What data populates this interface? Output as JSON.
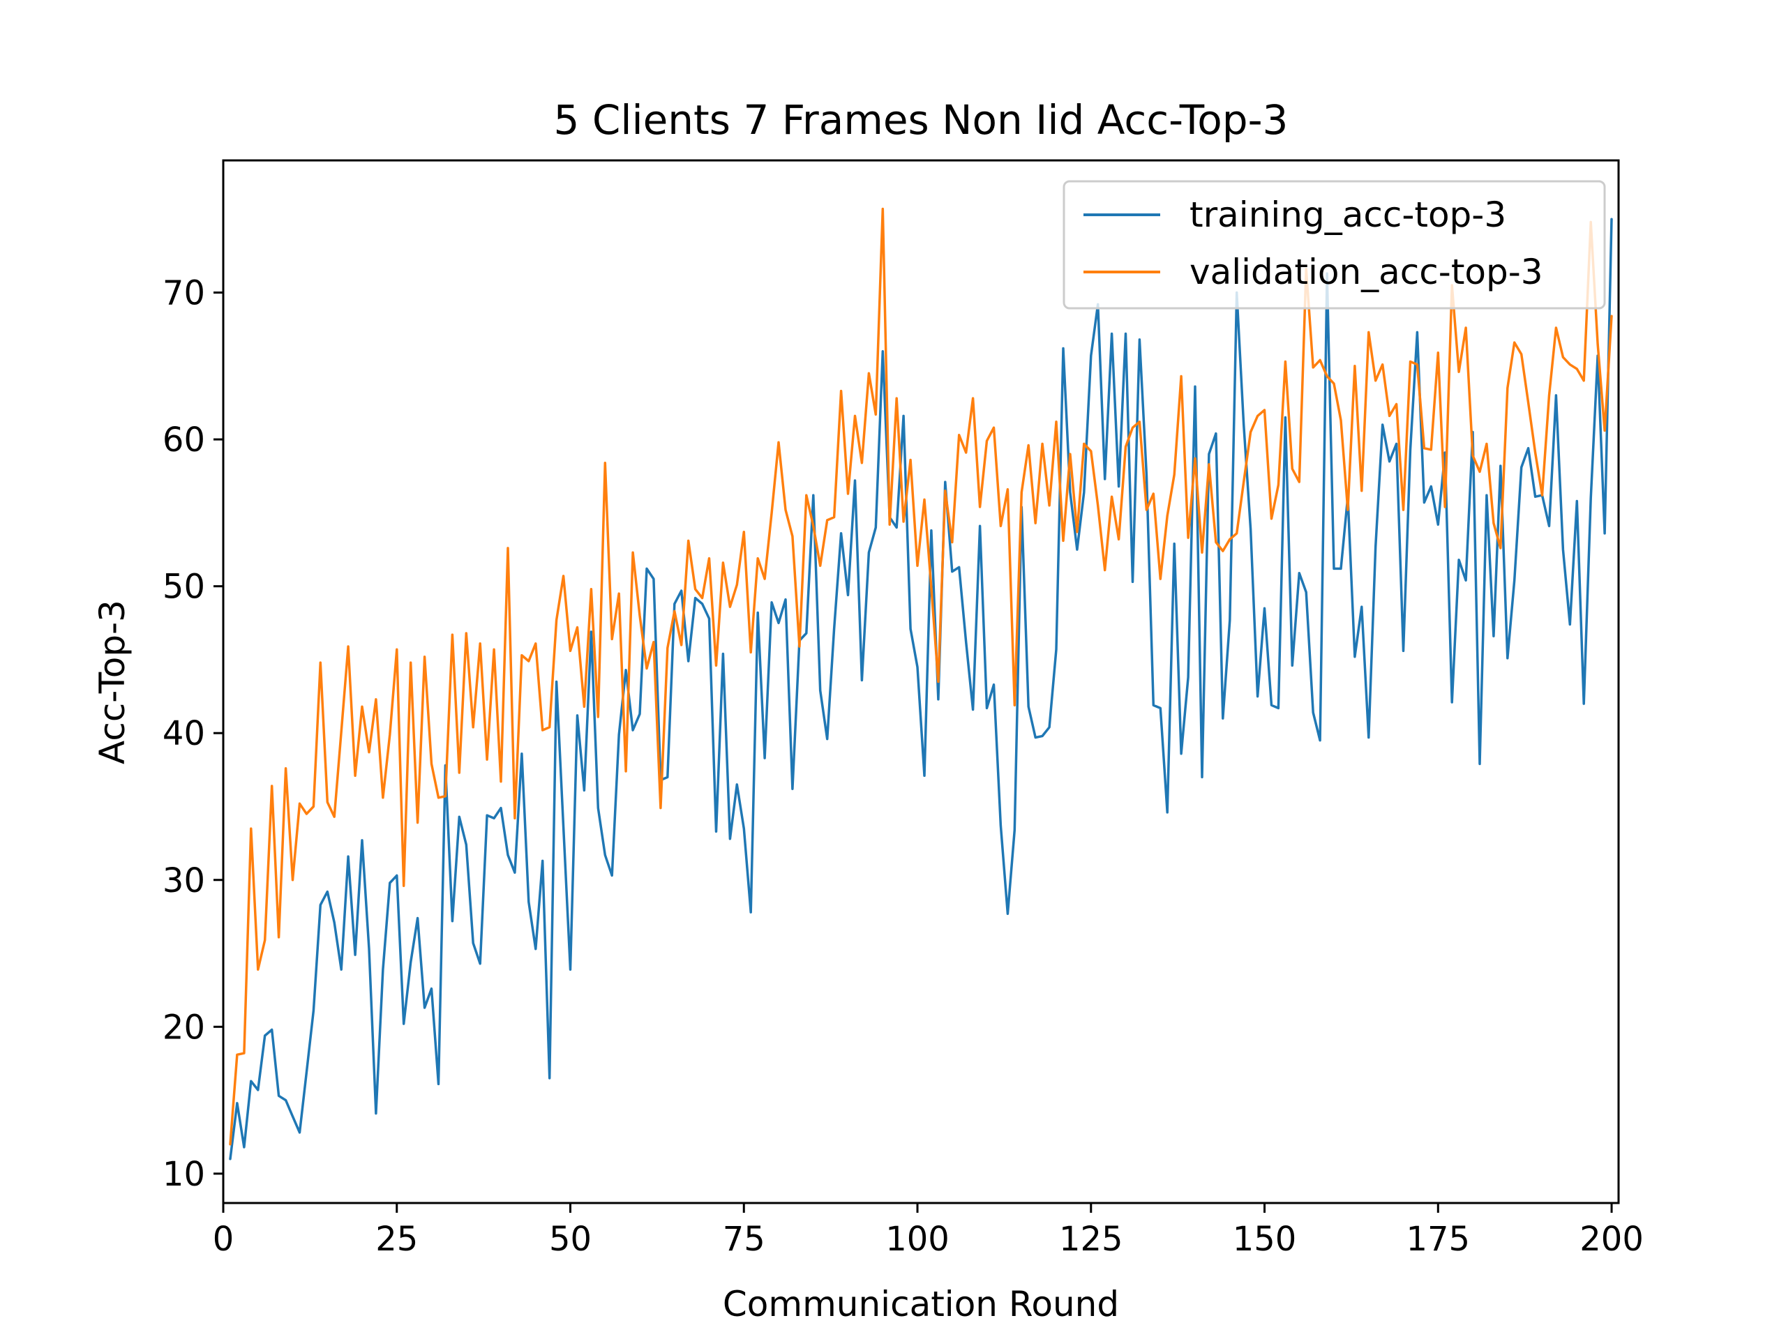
{
  "chart_data": {
    "type": "line",
    "title": "5 Clients 7 Frames Non Iid Acc-Top-3",
    "xlabel": "Communication Round",
    "ylabel": "Acc-Top-3",
    "xlim": [
      0,
      201
    ],
    "ylim": [
      8,
      79
    ],
    "xticks": [
      0,
      25,
      50,
      75,
      100,
      125,
      150,
      175,
      200
    ],
    "yticks": [
      10,
      20,
      30,
      40,
      50,
      60,
      70
    ],
    "grid": false,
    "legend_position": "top-right",
    "x": [
      1,
      2,
      3,
      4,
      5,
      6,
      7,
      8,
      9,
      10,
      11,
      12,
      13,
      14,
      15,
      16,
      17,
      18,
      19,
      20,
      21,
      22,
      23,
      24,
      25,
      26,
      27,
      28,
      29,
      30,
      31,
      32,
      33,
      34,
      35,
      36,
      37,
      38,
      39,
      40,
      41,
      42,
      43,
      44,
      45,
      46,
      47,
      48,
      49,
      50,
      51,
      52,
      53,
      54,
      55,
      56,
      57,
      58,
      59,
      60,
      61,
      62,
      63,
      64,
      65,
      66,
      67,
      68,
      69,
      70,
      71,
      72,
      73,
      74,
      75,
      76,
      77,
      78,
      79,
      80,
      81,
      82,
      83,
      84,
      85,
      86,
      87,
      88,
      89,
      90,
      91,
      92,
      93,
      94,
      95,
      96,
      97,
      98,
      99,
      100,
      101,
      102,
      103,
      104,
      105,
      106,
      107,
      108,
      109,
      110,
      111,
      112,
      113,
      114,
      115,
      116,
      117,
      118,
      119,
      120,
      121,
      122,
      123,
      124,
      125,
      126,
      127,
      128,
      129,
      130,
      131,
      132,
      133,
      134,
      135,
      136,
      137,
      138,
      139,
      140,
      141,
      142,
      143,
      144,
      145,
      146,
      147,
      148,
      149,
      150,
      151,
      152,
      153,
      154,
      155,
      156,
      157,
      158,
      159,
      160,
      161,
      162,
      163,
      164,
      165,
      166,
      167,
      168,
      169,
      170,
      171,
      172,
      173,
      174,
      175,
      176,
      177,
      178,
      179,
      180,
      181,
      182,
      183,
      184,
      185,
      186,
      187,
      188,
      189,
      190,
      191,
      192,
      193,
      194,
      195,
      196,
      197,
      198,
      199,
      200
    ],
    "series": [
      {
        "name": "training_acc-top-3",
        "color": "#1f77b4",
        "values": [
          11.0,
          14.8,
          11.8,
          16.3,
          15.7,
          19.4,
          19.8,
          15.3,
          15.0,
          13.9,
          12.8,
          16.9,
          21.1,
          28.3,
          29.2,
          27.1,
          23.9,
          31.6,
          24.9,
          32.7,
          25.3,
          14.1,
          23.9,
          29.8,
          30.3,
          20.2,
          24.4,
          27.4,
          21.3,
          22.6,
          16.1,
          37.8,
          27.2,
          34.3,
          32.4,
          25.7,
          24.3,
          34.4,
          34.2,
          34.9,
          31.7,
          30.5,
          38.6,
          28.5,
          25.3,
          31.3,
          16.5,
          43.5,
          33.6,
          23.9,
          41.2,
          36.1,
          46.9,
          34.9,
          31.7,
          30.3,
          39.9,
          44.3,
          40.2,
          41.3,
          51.2,
          50.5,
          36.8,
          37.0,
          48.8,
          49.7,
          44.9,
          49.2,
          48.8,
          47.8,
          33.3,
          45.4,
          32.8,
          36.5,
          33.5,
          27.8,
          48.2,
          38.3,
          48.9,
          47.5,
          49.1,
          36.2,
          46.3,
          46.8,
          56.2,
          42.9,
          39.6,
          47.1,
          53.6,
          49.4,
          57.2,
          43.6,
          52.3,
          54.0,
          66.0,
          54.7,
          54.0,
          61.6,
          47.1,
          44.5,
          37.1,
          53.8,
          42.3,
          57.1,
          51.0,
          51.3,
          46.2,
          41.6,
          54.1,
          41.7,
          43.3,
          33.7,
          27.7,
          33.4,
          55.4,
          41.8,
          39.7,
          39.8,
          40.4,
          45.7,
          66.2,
          56.4,
          52.5,
          56.4,
          65.7,
          69.2,
          57.3,
          67.2,
          56.8,
          67.2,
          50.3,
          66.8,
          57.6,
          41.9,
          41.7,
          34.6,
          52.9,
          38.6,
          43.8,
          63.6,
          37.0,
          59.0,
          60.4,
          41.0,
          47.7,
          70.0,
          61.0,
          53.9,
          42.5,
          48.5,
          41.9,
          41.7,
          61.5,
          44.6,
          50.9,
          49.6,
          41.4,
          39.5,
          71.3,
          51.2,
          51.2,
          56.1,
          45.2,
          48.6,
          39.7,
          52.7,
          61.0,
          58.5,
          59.7,
          45.6,
          59.3,
          67.3,
          55.7,
          56.8,
          54.2,
          59.1,
          42.1,
          51.8,
          50.4,
          60.5,
          37.9,
          56.2,
          46.6,
          58.2,
          45.1,
          50.4,
          58.1,
          59.4,
          56.1,
          56.2,
          54.1,
          63.0,
          52.5,
          47.4,
          55.8,
          42.0,
          56.0,
          65.7,
          53.6,
          75.0
        ]
      },
      {
        "name": "validation_acc-top-3",
        "color": "#ff7f0e",
        "values": [
          12.0,
          18.1,
          18.2,
          33.5,
          23.9,
          25.9,
          36.4,
          26.1,
          37.6,
          30.0,
          35.2,
          34.5,
          35.0,
          44.8,
          35.3,
          34.3,
          40.1,
          45.9,
          37.1,
          41.8,
          38.7,
          42.3,
          35.6,
          39.9,
          45.7,
          29.6,
          44.8,
          33.9,
          45.2,
          37.9,
          35.6,
          35.7,
          46.7,
          37.3,
          46.8,
          40.4,
          46.1,
          38.2,
          45.7,
          36.7,
          52.6,
          34.2,
          45.3,
          44.9,
          46.1,
          40.2,
          40.4,
          47.7,
          50.7,
          45.6,
          47.2,
          41.8,
          49.8,
          41.1,
          58.4,
          46.4,
          49.5,
          37.4,
          52.3,
          48.0,
          44.4,
          46.2,
          34.9,
          45.8,
          48.3,
          46.0,
          53.1,
          49.8,
          49.2,
          51.9,
          44.6,
          51.6,
          48.6,
          50.1,
          53.7,
          45.5,
          51.9,
          50.5,
          55.0,
          59.8,
          55.2,
          53.4,
          45.9,
          56.2,
          54.1,
          51.4,
          54.5,
          54.7,
          63.3,
          56.3,
          61.6,
          58.4,
          64.5,
          61.7,
          75.7,
          54.2,
          62.8,
          54.4,
          58.6,
          51.4,
          55.9,
          49.9,
          43.5,
          56.5,
          53.0,
          60.3,
          59.1,
          62.8,
          55.4,
          59.9,
          60.8,
          54.1,
          56.6,
          41.9,
          56.4,
          59.6,
          54.3,
          59.7,
          55.5,
          61.2,
          53.1,
          59.0,
          53.7,
          59.7,
          59.2,
          55.5,
          51.1,
          56.1,
          53.2,
          59.5,
          60.8,
          61.2,
          55.2,
          56.3,
          50.5,
          54.8,
          57.6,
          64.3,
          53.3,
          58.7,
          52.3,
          58.3,
          53.0,
          52.4,
          53.2,
          53.6,
          57.1,
          60.5,
          61.6,
          62.0,
          54.6,
          56.9,
          65.3,
          58.0,
          57.1,
          71.6,
          64.9,
          65.4,
          64.3,
          63.8,
          61.3,
          55.2,
          65.0,
          56.5,
          67.3,
          64.0,
          65.1,
          61.6,
          62.4,
          55.2,
          65.3,
          65.1,
          59.4,
          59.3,
          65.9,
          55.4,
          70.5,
          64.6,
          67.6,
          58.9,
          57.8,
          59.7,
          54.3,
          52.6,
          63.5,
          66.6,
          65.8,
          62.5,
          59.1,
          56.2,
          63.0,
          67.6,
          65.6,
          65.1,
          64.8,
          64.0,
          74.8,
          66.5,
          60.6,
          68.4
        ]
      }
    ]
  }
}
